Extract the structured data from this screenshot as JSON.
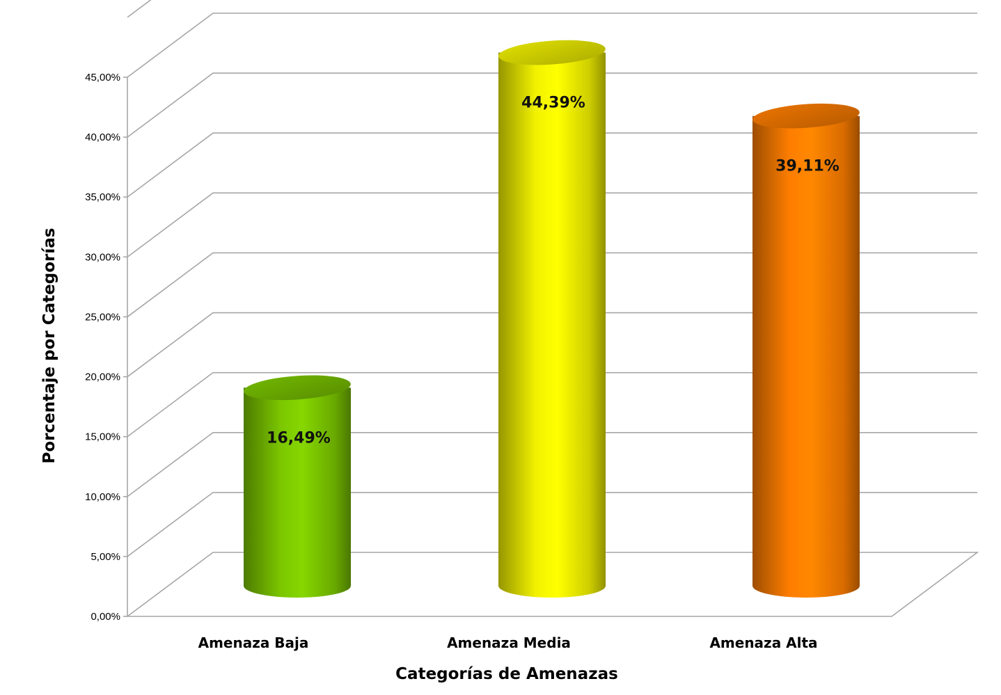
{
  "chart_data": {
    "type": "bar",
    "style": "3d-cylinder",
    "categories": [
      "Amenaza Baja",
      "Amenaza Media",
      "Amenaza Alta"
    ],
    "values": [
      16.49,
      44.39,
      39.11
    ],
    "data_labels": [
      "16,49%",
      "44,39%",
      "39,11%"
    ],
    "colors": [
      "#7cc700",
      "#f2f200",
      "#ff7e00"
    ],
    "xlabel": "Categorías  de Amenazas",
    "ylabel": "Porcentaje por Categorías",
    "ylim": [
      0,
      45
    ],
    "y_ticks": [
      0,
      5,
      10,
      15,
      20,
      25,
      30,
      35,
      40,
      45
    ],
    "y_tick_labels": [
      "0,00%",
      "5,00%",
      "10,00%",
      "15,00%",
      "20,00%",
      "25,00%",
      "30,00%",
      "35,00%",
      "40,00%",
      "45,00%"
    ],
    "grid": true,
    "legend": "none"
  }
}
